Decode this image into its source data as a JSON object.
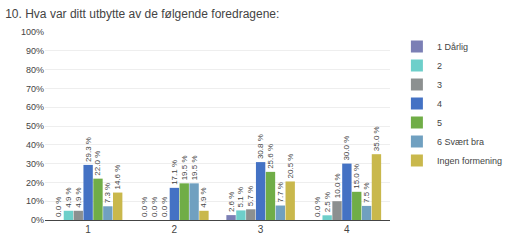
{
  "chart_data": {
    "type": "bar",
    "title": "10. Hva var ditt utbytte av de følgende foredragene:",
    "categories": [
      "1",
      "2",
      "3",
      "4"
    ],
    "series": [
      {
        "name": "1 Dårlig",
        "color": "#7b7fb5",
        "values": [
          0.0,
          0.0,
          2.6,
          0.0
        ],
        "value_labels": [
          "0.0 %",
          "0.0 %",
          "2.6 %",
          "0.0 %"
        ]
      },
      {
        "name": "2",
        "color": "#6dcfca",
        "values": [
          4.9,
          0.0,
          5.1,
          2.5
        ],
        "value_labels": [
          "4.9 %",
          "0.0 %",
          "5.1 %",
          "2.5 %"
        ]
      },
      {
        "name": "3",
        "color": "#8c9090",
        "values": [
          4.9,
          0.0,
          5.7,
          10.0
        ],
        "value_labels": [
          "4.9 %",
          "0.0 %",
          "5.7 %",
          "10.0 %"
        ]
      },
      {
        "name": "4",
        "color": "#4472c4",
        "values": [
          29.3,
          17.1,
          30.8,
          30.0
        ],
        "value_labels": [
          "29.3 %",
          "17.1 %",
          "30.8 %",
          "30.0 %"
        ]
      },
      {
        "name": "5",
        "color": "#70ad47",
        "values": [
          22.0,
          19.5,
          25.6,
          15.0
        ],
        "value_labels": [
          "22.0 %",
          "19.5 %",
          "25.6 %",
          "15.0 %"
        ]
      },
      {
        "name": "6 Svært bra",
        "color": "#70a0c0",
        "values": [
          7.3,
          19.5,
          7.7,
          7.5
        ],
        "value_labels": [
          "7.3 %",
          "19.5 %",
          "7.7 %",
          "7.5 %"
        ]
      },
      {
        "name": "Ingen formening",
        "color": "#c9b84c",
        "values": [
          14.6,
          4.9,
          20.5,
          35.0
        ],
        "value_labels": [
          "14.6 %",
          "4.9 %",
          "20.5 %",
          "35.0 %"
        ]
      }
    ],
    "ylim": [
      0,
      100
    ],
    "yticks": [
      {
        "value": 0,
        "label": "0%"
      },
      {
        "value": 10,
        "label": "10%"
      },
      {
        "value": 20,
        "label": "20%"
      },
      {
        "value": 30,
        "label": "30%"
      },
      {
        "value": 40,
        "label": "40%"
      },
      {
        "value": 50,
        "label": "50%"
      },
      {
        "value": 60,
        "label": "60%"
      },
      {
        "value": 70,
        "label": "70%"
      },
      {
        "value": 80,
        "label": "80%"
      },
      {
        "value": 90,
        "label": "90%"
      },
      {
        "value": 100,
        "label": "100%"
      }
    ],
    "grid": true,
    "legend": "right",
    "data_labels": true
  }
}
